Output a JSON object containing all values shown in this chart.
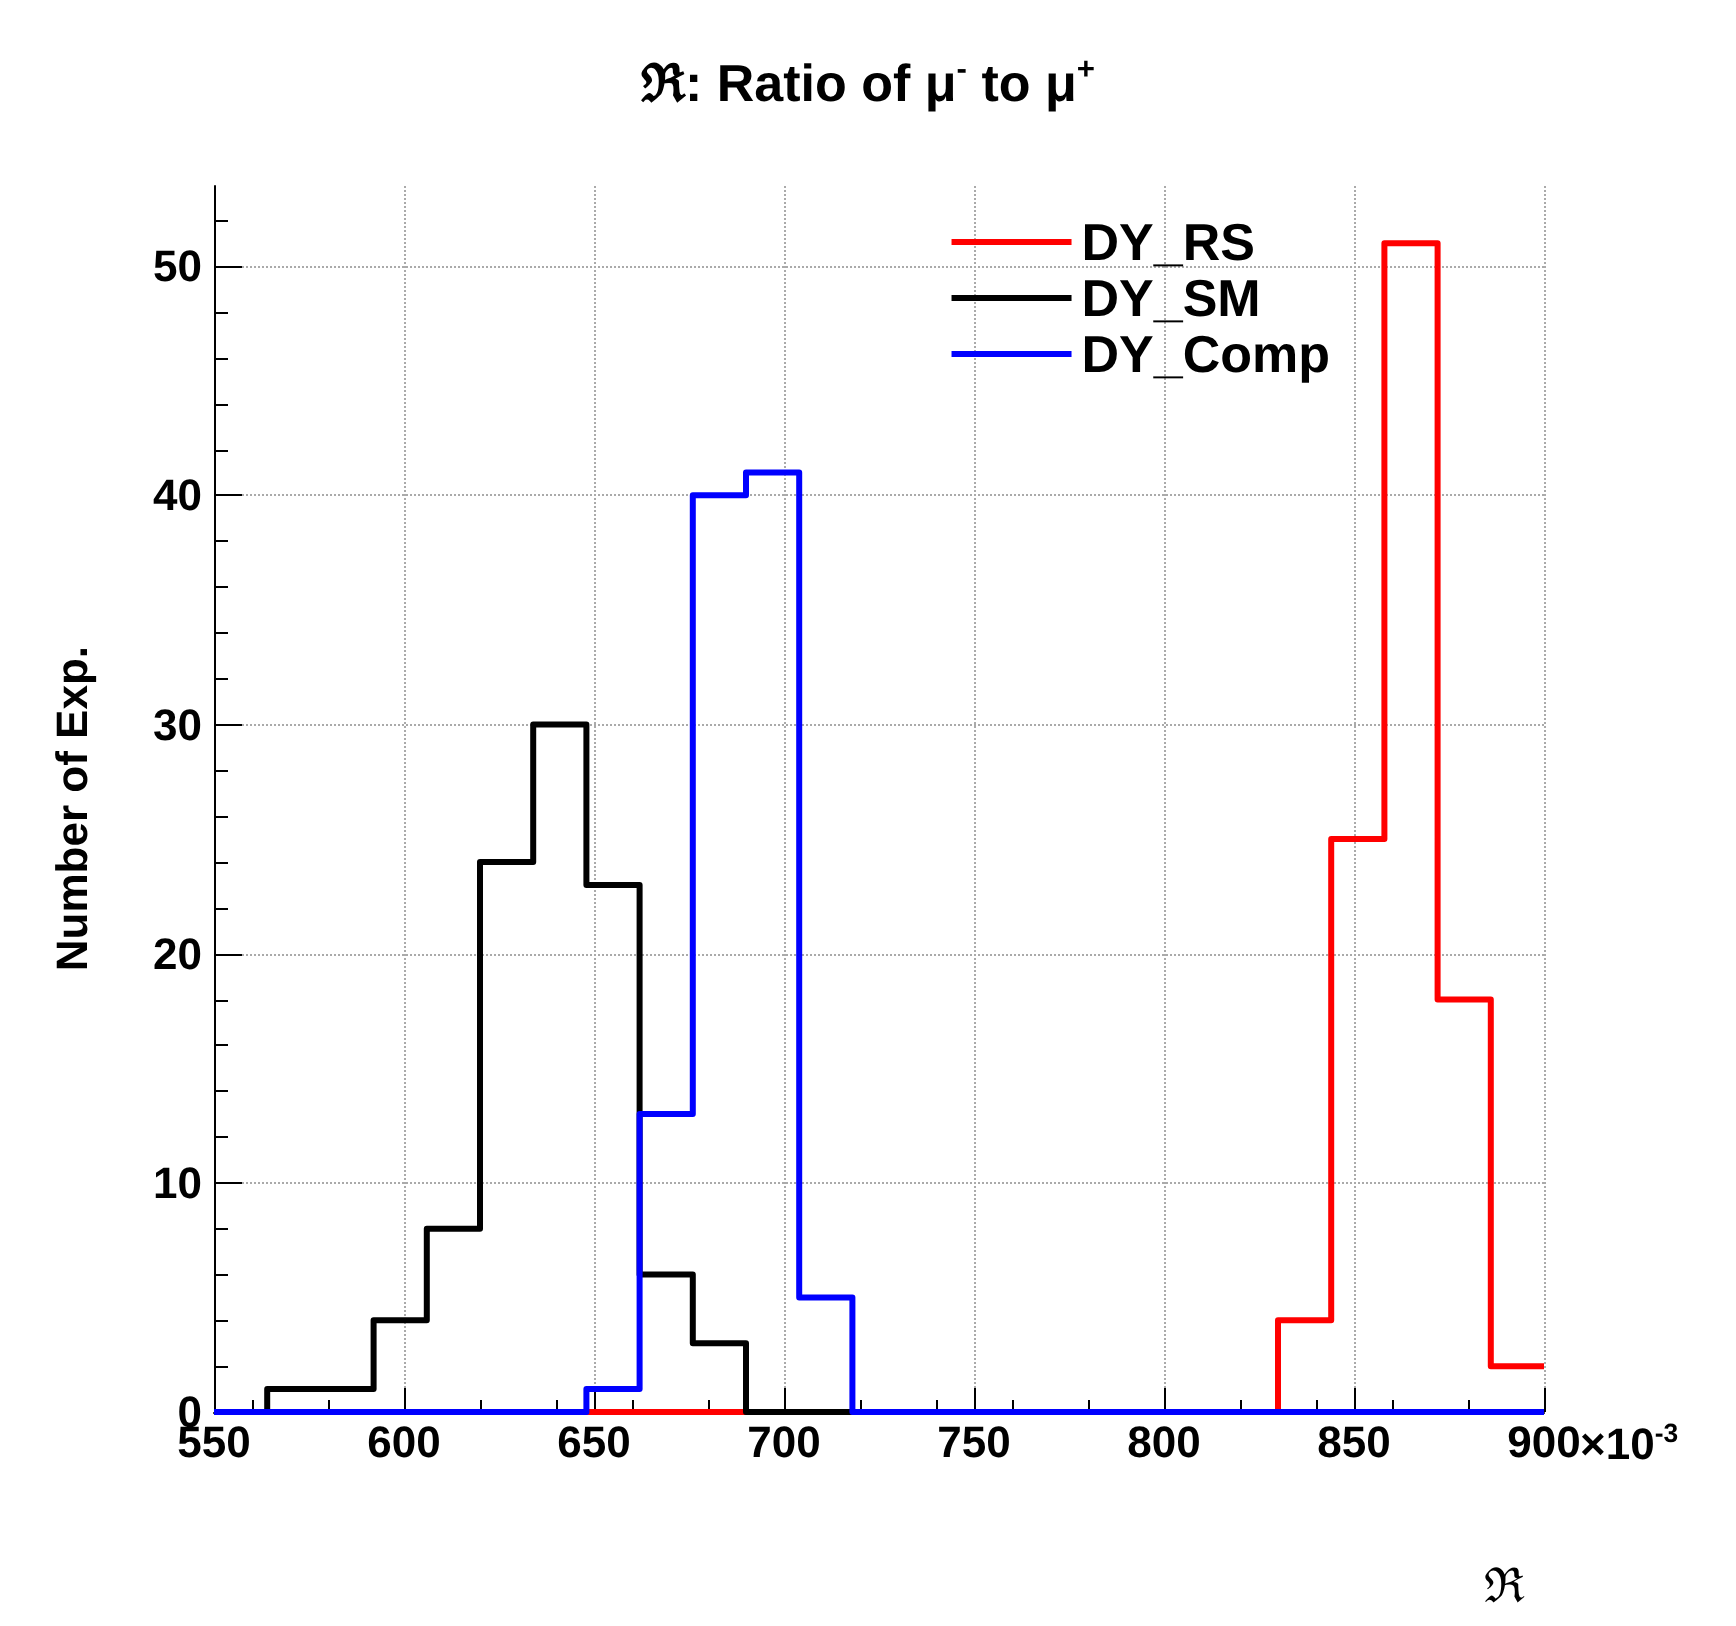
{
  "chart_data": {
    "type": "histogram",
    "title": "ℜ: Ratio of μ$^{-}$ to μ$^{+}$",
    "xlabel": "ℜ",
    "ylabel": "Number of Exp.",
    "annotations": [
      "×10$^{-3}$"
    ],
    "bins": [
      550,
      564,
      578,
      592,
      606,
      620,
      634,
      648,
      662,
      676,
      690,
      704,
      718,
      732,
      746,
      760,
      774,
      788,
      802,
      816,
      830,
      844,
      858,
      872,
      886,
      900
    ],
    "series": [
      {
        "name": "DY_RS",
        "color": "#ff0000",
        "values": [
          0,
          0,
          0,
          0,
          0,
          0,
          0,
          0,
          0,
          0,
          0,
          0,
          0,
          0,
          0,
          0,
          0,
          0,
          0,
          0,
          4,
          25,
          51,
          18,
          2
        ]
      },
      {
        "name": "DY_SM",
        "color": "#000000",
        "values": [
          0,
          1,
          1,
          4,
          8,
          24,
          30,
          23,
          6,
          3,
          0,
          0,
          0,
          0,
          0,
          0,
          0,
          0,
          0,
          0,
          0,
          0,
          0,
          0,
          0
        ]
      },
      {
        "name": "DY_Comp",
        "color": "#0000ff",
        "values": [
          0,
          0,
          0,
          0,
          0,
          0,
          0,
          1,
          13,
          40,
          41,
          5,
          0,
          0,
          0,
          0,
          0,
          0,
          0,
          0,
          0,
          0,
          0,
          0,
          0
        ]
      }
    ],
    "xlim": [
      550,
      900
    ],
    "xticks": [
      550,
      600,
      650,
      700,
      750,
      800,
      850,
      900
    ],
    "ylim": [
      0,
      53.5
    ],
    "yticks": [
      0,
      10,
      20,
      30,
      40,
      50
    ],
    "grid": true,
    "legend": "top right"
  }
}
